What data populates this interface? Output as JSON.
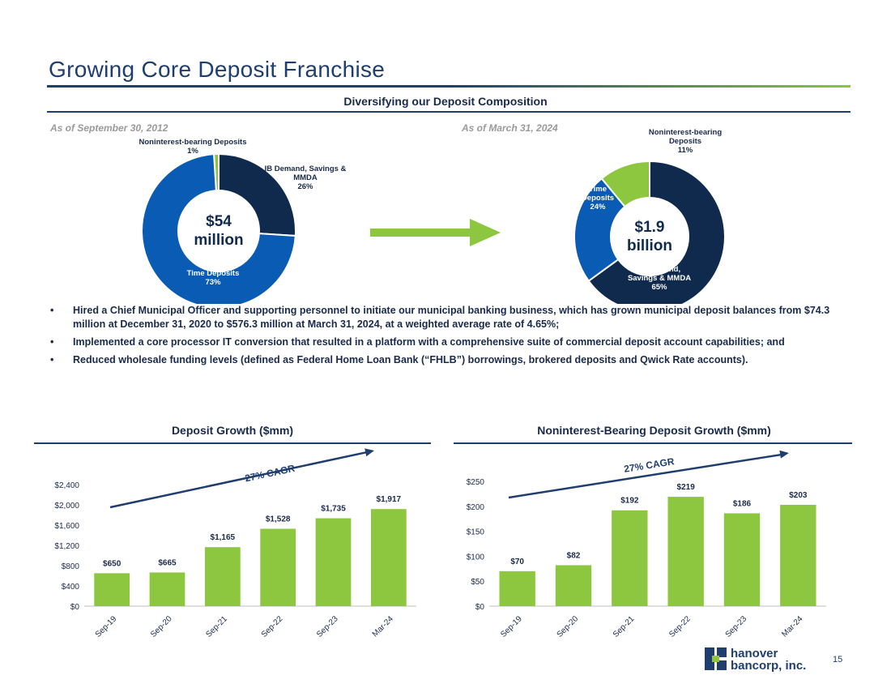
{
  "header": {
    "title": "Growing Core Deposit Franchise",
    "subtitle": "Diversifying our Deposit Composition",
    "as_of_left": "As of September 30, 2012",
    "as_of_right": "As of March 31, 2024"
  },
  "donut_left": {
    "center_line1": "$54",
    "center_line2": "million",
    "slices": [
      {
        "label_lines": [
          "Noninterest-bearing Deposits"
        ],
        "pct_label": "1%",
        "value": 1,
        "color": "#8dc63f"
      },
      {
        "label_lines": [
          "IB Demand, Savings &",
          "MMDA"
        ],
        "pct_label": "26%",
        "value": 26,
        "color": "#0f2a4d"
      },
      {
        "label_lines": [
          "Time Deposits"
        ],
        "pct_label": "73%",
        "value": 73,
        "color": "#0a5bb3"
      }
    ]
  },
  "donut_right": {
    "center_line1": "$1.9",
    "center_line2": "billion",
    "slices": [
      {
        "label_lines": [
          "Noninterest-bearing",
          "Deposits"
        ],
        "pct_label": "11%",
        "value": 11,
        "color": "#8dc63f"
      },
      {
        "label_lines": [
          "IB Demand,",
          "Savings & MMDA"
        ],
        "pct_label": "65%",
        "value": 65,
        "color": "#0f2a4d"
      },
      {
        "label_lines": [
          "Time",
          "Deposits"
        ],
        "pct_label": "24%",
        "value": 24,
        "color": "#0a5bb3"
      }
    ]
  },
  "bullets": [
    "Hired a Chief Municipal Officer and supporting personnel to initiate our municipal banking business, which has grown municipal deposit balances from $74.3 million at December 31, 2020 to $576.3 million at March 31, 2024, at a weighted average rate of 4.65%;",
    "Implemented a core processor IT conversion that resulted in a platform with a comprehensive suite of commercial deposit account capabilities; and",
    "Reduced wholesale funding levels (defined as Federal Home Loan Bank (“FHLB”) borrowings, brokered deposits and Qwick Rate accounts)."
  ],
  "bullet_glyph": "•",
  "chart_data": [
    {
      "type": "bar",
      "title": "Deposit Growth ($mm)",
      "categories": [
        "Sep-19",
        "Sep-20",
        "Sep-21",
        "Sep-22",
        "Sep-23",
        "Mar-24"
      ],
      "values": [
        650,
        665,
        1165,
        1528,
        1735,
        1917
      ],
      "value_labels": [
        "$650",
        "$665",
        "$1,165",
        "$1,528",
        "$1,735",
        "$1,917"
      ],
      "yticks": [
        0,
        400,
        800,
        1200,
        1600,
        2000,
        2400
      ],
      "ytick_labels": [
        "$0",
        "$400",
        "$800",
        "$1,200",
        "$1,600",
        "$2,000",
        "$2,400"
      ],
      "ylim": [
        0,
        2400
      ],
      "annotation": "27% CAGR",
      "bar_color": "#8dc63f"
    },
    {
      "type": "bar",
      "title": "Noninterest-Bearing Deposit Growth ($mm)",
      "categories": [
        "Sep-19",
        "Sep-20",
        "Sep-21",
        "Sep-22",
        "Sep-23",
        "Mar-24"
      ],
      "values": [
        70,
        82,
        192,
        219,
        186,
        203
      ],
      "value_labels": [
        "$70",
        "$82",
        "$192",
        "$219",
        "$186",
        "$203"
      ],
      "yticks": [
        0,
        50,
        100,
        150,
        200,
        250
      ],
      "ytick_labels": [
        "$0",
        "$50",
        "$100",
        "$150",
        "$200",
        "$250"
      ],
      "ylim": [
        0,
        250
      ],
      "annotation": "27% CAGR",
      "bar_color": "#8dc63f"
    }
  ],
  "footer": {
    "logo_line1": "hanover",
    "logo_line2": "bancorp, inc.",
    "page_number": "15"
  }
}
